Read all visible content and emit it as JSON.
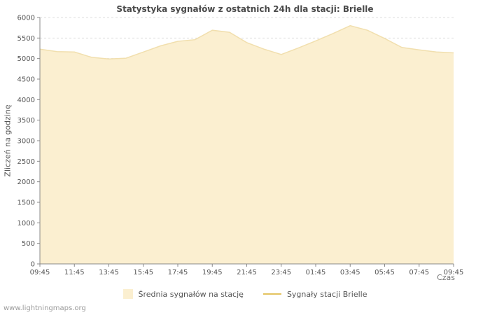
{
  "title": "Statystyka sygnałów z ostatnich 24h dla stacji: Brielle",
  "watermark": "www.lightningmaps.org",
  "chart_data": {
    "type": "area",
    "title": "Statystyka sygnałów z ostatnich 24h dla stacji: Brielle",
    "xlabel": "Czas",
    "ylabel": "Zliczeń na godzinę",
    "ylim": [
      0,
      6000
    ],
    "ytick_step": 500,
    "grid": "horizontal-dashed",
    "legend_position": "bottom",
    "x_tick_labels": [
      "09:45",
      "11:45",
      "13:45",
      "15:45",
      "17:45",
      "19:45",
      "21:45",
      "23:45",
      "01:45",
      "03:45",
      "05:45",
      "07:45",
      "09:45"
    ],
    "x_hours_offset": [
      0,
      1,
      2,
      3,
      4,
      5,
      6,
      7,
      8,
      9,
      10,
      11,
      12,
      13,
      14,
      15,
      16,
      17,
      18,
      19,
      20,
      21,
      22,
      23,
      24
    ],
    "series": [
      {
        "name": "Średnia sygnałów na stację",
        "type": "area",
        "color": "#FBEFD0",
        "edge_color": "#F1DFAE",
        "values": [
          5230,
          5170,
          5160,
          5030,
          4990,
          5010,
          5160,
          5310,
          5420,
          5460,
          5690,
          5640,
          5390,
          5230,
          5100,
          5260,
          5430,
          5610,
          5800,
          5690,
          5490,
          5270,
          5210,
          5160,
          5140
        ]
      },
      {
        "name": "Sygnały stacji Brielle",
        "type": "line",
        "color": "#E3C35F",
        "values": []
      }
    ]
  }
}
